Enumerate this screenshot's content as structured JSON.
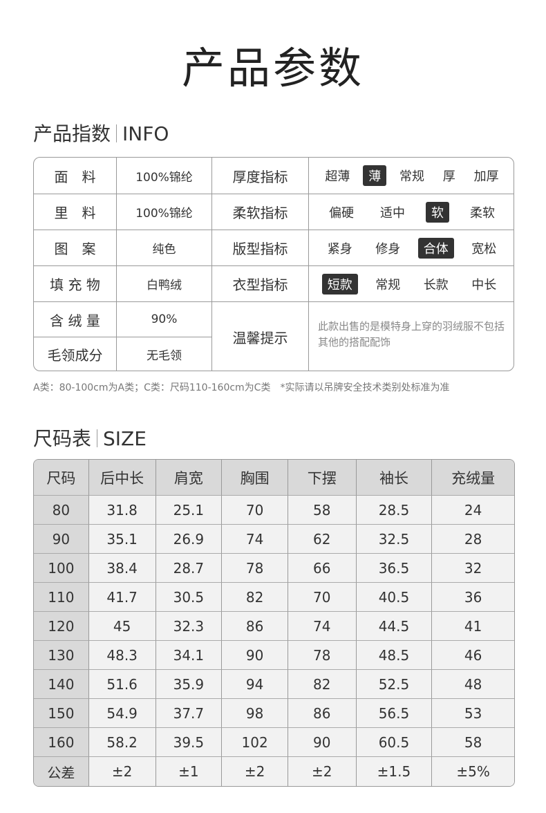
{
  "title": "产品参数",
  "info_section": {
    "title": "产品指数",
    "title_en": "INFO"
  },
  "info": {
    "left": [
      {
        "label": "面　料",
        "value": "100%锦纶"
      },
      {
        "label": "里　料",
        "value": "100%锦纶"
      },
      {
        "label": "图　案",
        "value": "纯色"
      },
      {
        "label": "填 充 物",
        "value": "白鸭绒"
      },
      {
        "label": "含 绒 量",
        "value": "90%"
      },
      {
        "label": "毛领成分",
        "value": "无毛领"
      }
    ],
    "indices": [
      {
        "label": "厚度指标",
        "options": [
          "超薄",
          "薄",
          "常规",
          "厚",
          "加厚"
        ],
        "selected": 1
      },
      {
        "label": "柔软指标",
        "options": [
          "偏硬",
          "适中",
          "软",
          "柔软"
        ],
        "selected": 2
      },
      {
        "label": "版型指标",
        "options": [
          "紧身",
          "修身",
          "合体",
          "宽松"
        ],
        "selected": 2
      },
      {
        "label": "衣型指标",
        "options": [
          "短款",
          "常规",
          "长款",
          "中长"
        ],
        "selected": 0
      }
    ],
    "tip_label": "温馨提示",
    "tip_text": "此款出售的是模特身上穿的羽绒服不包括其他的搭配配饰"
  },
  "note": "A类：80-100cm为A类；C类：尺码110-160cm为C类　*实际请以吊牌安全技术类别处标准为准",
  "size_section": {
    "title": "尺码表",
    "title_en": "SIZE"
  },
  "size_table": {
    "headers": [
      "尺码",
      "后中长",
      "肩宽",
      "胸围",
      "下摆",
      "袖长",
      "充绒量"
    ],
    "rows": [
      [
        "80",
        "31.8",
        "25.1",
        "70",
        "58",
        "28.5",
        "24"
      ],
      [
        "90",
        "35.1",
        "26.9",
        "74",
        "62",
        "32.5",
        "28"
      ],
      [
        "100",
        "38.4",
        "28.7",
        "78",
        "66",
        "36.5",
        "32"
      ],
      [
        "110",
        "41.7",
        "30.5",
        "82",
        "70",
        "40.5",
        "36"
      ],
      [
        "120",
        "45",
        "32.3",
        "86",
        "74",
        "44.5",
        "41"
      ],
      [
        "130",
        "48.3",
        "34.1",
        "90",
        "78",
        "48.5",
        "46"
      ],
      [
        "140",
        "51.6",
        "35.9",
        "94",
        "82",
        "52.5",
        "48"
      ],
      [
        "150",
        "54.9",
        "37.7",
        "98",
        "86",
        "56.5",
        "53"
      ],
      [
        "160",
        "58.2",
        "39.5",
        "102",
        "90",
        "60.5",
        "58"
      ],
      [
        "公差",
        "±2",
        "±1",
        "±2",
        "±2",
        "±1.5",
        "±5%"
      ]
    ]
  }
}
